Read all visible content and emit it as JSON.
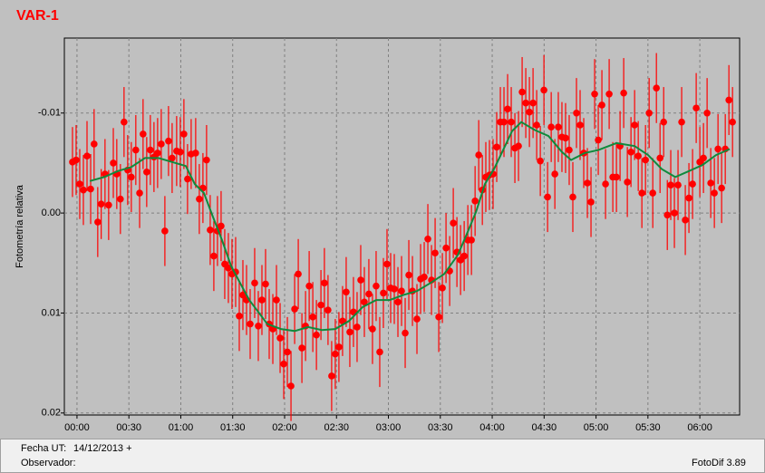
{
  "chart_data": {
    "type": "scatter",
    "title": "VAR-1",
    "y_label": "Fotometría relativa",
    "xlim": [
      -7.3,
      383
    ],
    "ylim": [
      -0.0175,
      0.0202
    ],
    "y_inverted": true,
    "grid": true,
    "xticks": [
      {
        "value": 0,
        "label": "00:00"
      },
      {
        "value": 30,
        "label": "00:30"
      },
      {
        "value": 60,
        "label": "01:00"
      },
      {
        "value": 90,
        "label": "01:30"
      },
      {
        "value": 120,
        "label": "02:00"
      },
      {
        "value": 150,
        "label": "02:30"
      },
      {
        "value": 180,
        "label": "03:00"
      },
      {
        "value": 210,
        "label": "03:30"
      },
      {
        "value": 240,
        "label": "04:00"
      },
      {
        "value": 270,
        "label": "04:30"
      },
      {
        "value": 300,
        "label": "05:00"
      },
      {
        "value": 330,
        "label": "05:30"
      },
      {
        "value": 360,
        "label": "06:00"
      }
    ],
    "yticks": [
      -0.01,
      {
        "value": 0,
        "label": "0.00"
      },
      0.01,
      0.02
    ],
    "series": [
      {
        "type": "errorbar",
        "color": "#ff0000",
        "error": 0.0035,
        "x": [
          -2.6,
          -0.5,
          1.6,
          3.7,
          5.8,
          7.9,
          9.9,
          12,
          14,
          16.2,
          18.3,
          21,
          23,
          25.1,
          27.2,
          29.3,
          31.4,
          34,
          36.2,
          38.2,
          40.3,
          42.4,
          44.5,
          46.6,
          48.7,
          50.8,
          52.9,
          55,
          57.6,
          59.7,
          61.8,
          63.9,
          66,
          68.6,
          70.7,
          72.8,
          74.9,
          77,
          79.1,
          81.2,
          83.3,
          85.4,
          87.5,
          89.6,
          91.7,
          93.8,
          95.9,
          98,
          100.1,
          102.7,
          104.8,
          106.9,
          109,
          111.1,
          113.2,
          115.3,
          117.4,
          119.5,
          121.6,
          123.7,
          125.8,
          127.9,
          130,
          132.1,
          134.2,
          136.3,
          138.4,
          141,
          143,
          145.1,
          147.2,
          149.3,
          151.4,
          153.5,
          155.6,
          157.7,
          159.8,
          161.9,
          164,
          166.1,
          168.7,
          170.8,
          172.9,
          175,
          177.1,
          179.2,
          181.3,
          183.4,
          185.5,
          187.6,
          189.7,
          191.8,
          193.9,
          196.5,
          198.6,
          200.7,
          202.8,
          204.9,
          207,
          209.1,
          211.2,
          213.3,
          215.4,
          217.5,
          219.6,
          221.7,
          223.8,
          225.9,
          228,
          230.1,
          232.2,
          234.3,
          236.3,
          238.4,
          240.5,
          242.6,
          244.7,
          246.8,
          248.9,
          251,
          253.1,
          255.2,
          257.3,
          259.4,
          261.5,
          263.6,
          265.7,
          267.8,
          269.9,
          272,
          274.1,
          276.2,
          278.2,
          280.3,
          282.4,
          284.5,
          286.6,
          288.7,
          290.8,
          292.9,
          295,
          297.1,
          299.2,
          301.3,
          303.4,
          305.5,
          307.6,
          309.7,
          311.8,
          313.9,
          316,
          318.1,
          320.2,
          322.3,
          324.4,
          326.5,
          328.6,
          330.7,
          332.8,
          334.9,
          337,
          339.1,
          341.2,
          343.2,
          345.3,
          347.4,
          349.5,
          351.6,
          353.7,
          355.8,
          357.9,
          360,
          362.1,
          364.2,
          366.3,
          368.4,
          370.5,
          372.6,
          374.7,
          376.8,
          378.9
        ],
        "values": [
          -0.0051,
          -0.0053,
          -0.0029,
          -0.0023,
          -0.0057,
          -0.0024,
          -0.0069,
          0.0009,
          -0.0009,
          -0.0039,
          -0.0008,
          -0.005,
          -0.0039,
          -0.0014,
          -0.0091,
          -0.0043,
          -0.0036,
          -0.0063,
          -0.002,
          -0.0079,
          -0.0041,
          -0.0063,
          -0.0056,
          -0.006,
          -0.0069,
          0.0018,
          -0.0072,
          -0.0055,
          -0.0062,
          -0.0061,
          -0.0079,
          -0.0034,
          -0.0059,
          -0.006,
          -0.0014,
          -0.0025,
          -0.0053,
          0.0017,
          0.0043,
          0.0018,
          0.0013,
          0.0051,
          0.0055,
          0.0061,
          0.0059,
          0.0103,
          0.0082,
          0.0087,
          0.0111,
          0.007,
          0.0113,
          0.0087,
          0.0071,
          0.0111,
          0.0116,
          0.0087,
          0.0125,
          0.0151,
          0.0139,
          0.0173,
          0.0096,
          0.0061,
          0.0135,
          0.0113,
          0.0073,
          0.0104,
          0.0122,
          0.0092,
          0.007,
          0.0097,
          0.0163,
          0.0141,
          0.0134,
          0.0108,
          0.0079,
          0.0119,
          0.0099,
          0.0114,
          0.0067,
          0.0089,
          0.0081,
          0.0116,
          0.0073,
          0.0139,
          0.008,
          0.0051,
          0.0075,
          0.0076,
          0.0089,
          0.0078,
          0.012,
          0.0062,
          0.0078,
          0.0106,
          0.0066,
          0.0064,
          0.0026,
          0.0067,
          0.004,
          0.0104,
          0.0075,
          0.0035,
          0.0058,
          0.001,
          0.0039,
          0.0047,
          0.0043,
          0.0027,
          0.0027,
          -0.0012,
          -0.0058,
          -0.0023,
          -0.0036,
          -0.0038,
          -0.0039,
          -0.0066,
          -0.0091,
          -0.0091,
          -0.0104,
          -0.0091,
          -0.0065,
          -0.0067,
          -0.0121,
          -0.011,
          -0.0101,
          -0.011,
          -0.0088,
          -0.0052,
          -0.0123,
          -0.0016,
          -0.0086,
          -0.0039,
          -0.0086,
          -0.0076,
          -0.0075,
          -0.0063,
          -0.0016,
          -0.01,
          -0.0088,
          -0.006,
          -0.003,
          -0.0011,
          -0.0119,
          -0.0073,
          -0.0108,
          -0.0029,
          -0.0119,
          -0.0036,
          -0.0036,
          -0.0067,
          -0.012,
          -0.0031,
          -0.0061,
          -0.0088,
          -0.0057,
          -0.002,
          -0.0053,
          -0.01,
          -0.002,
          -0.0125,
          -0.0055,
          -0.0091,
          0.0002,
          -0.0028,
          0,
          -0.0028,
          -0.0091,
          0.0007,
          -0.0015,
          -0.0029,
          -0.0105,
          -0.0051,
          -0.0055,
          -0.01,
          -0.003,
          -0.002,
          -0.0064,
          -0.0025,
          -0.0064,
          -0.0113,
          -0.0091
        ]
      },
      {
        "type": "line",
        "color": "#0f8a3c",
        "x": [
          7.4,
          15.7,
          23.6,
          31.4,
          39.3,
          47.2,
          55,
          62.9,
          68.1,
          73.4,
          78.6,
          83.8,
          89.1,
          94.3,
          99.6,
          104.8,
          110,
          117.9,
          125.8,
          133.6,
          141.5,
          149.3,
          157.2,
          165.1,
          172.9,
          180.8,
          188.6,
          196.5,
          204.3,
          212.2,
          220.1,
          225.3,
          230.6,
          235.8,
          241,
          246.3,
          251.5,
          256.8,
          264.6,
          272.5,
          280.3,
          285.6,
          293.4,
          301.3,
          311.8,
          322.3,
          330.1,
          338,
          345.8,
          353.7,
          361.5,
          369.4,
          377.3
        ],
        "values": [
          -0.0032,
          -0.0036,
          -0.0042,
          -0.0046,
          -0.0055,
          -0.0055,
          -0.0051,
          -0.0047,
          -0.0029,
          -0.002,
          0.0004,
          0.0027,
          0.0053,
          0.007,
          0.0087,
          0.0099,
          0.0111,
          0.0116,
          0.0118,
          0.0114,
          0.0117,
          0.0116,
          0.0108,
          0.0094,
          0.0087,
          0.0087,
          0.0082,
          0.0078,
          0.007,
          0.0061,
          0.0042,
          0.0021,
          -0.0001,
          -0.0029,
          -0.0044,
          -0.0063,
          -0.0082,
          -0.0091,
          -0.0083,
          -0.0077,
          -0.0061,
          -0.0053,
          -0.006,
          -0.0063,
          -0.007,
          -0.0067,
          -0.0058,
          -0.0044,
          -0.0036,
          -0.0042,
          -0.0048,
          -0.0058,
          -0.0064
        ]
      }
    ]
  },
  "footer": {
    "date_label": "Fecha UT:",
    "date": "14/12/2013 +",
    "observer_label": "Observador:",
    "software": "FotoDif 3.89"
  }
}
